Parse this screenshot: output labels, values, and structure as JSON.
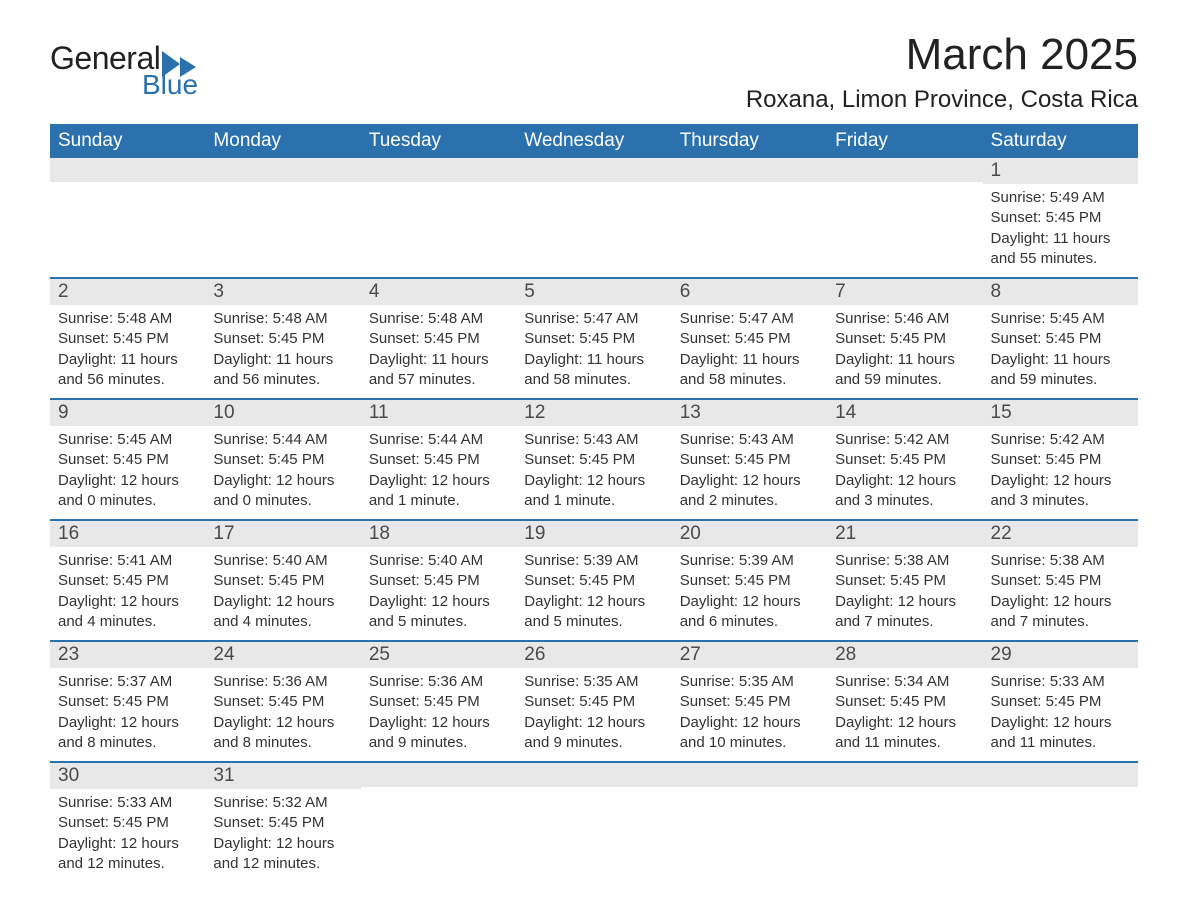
{
  "logo": {
    "text1": "General",
    "text2": "Blue",
    "brand_color": "#2a71ad"
  },
  "header": {
    "month_title": "March 2025",
    "location": "Roxana, Limon Province, Costa Rica"
  },
  "colors": {
    "header_bg": "#2a71ad",
    "header_fg": "#ffffff",
    "daynum_bg": "#e8e8e8",
    "row_divider": "#2a71ad",
    "text": "#222222"
  },
  "typography": {
    "month_title_fontsize": 44,
    "location_fontsize": 24,
    "weekday_fontsize": 19,
    "daynum_fontsize": 19,
    "body_fontsize": 15
  },
  "calendar": {
    "type": "table",
    "weekdays": [
      "Sunday",
      "Monday",
      "Tuesday",
      "Wednesday",
      "Thursday",
      "Friday",
      "Saturday"
    ],
    "weeks": [
      [
        null,
        null,
        null,
        null,
        null,
        null,
        {
          "day": "1",
          "sunrise": "Sunrise: 5:49 AM",
          "sunset": "Sunset: 5:45 PM",
          "daylight": "Daylight: 11 hours and 55 minutes."
        }
      ],
      [
        {
          "day": "2",
          "sunrise": "Sunrise: 5:48 AM",
          "sunset": "Sunset: 5:45 PM",
          "daylight": "Daylight: 11 hours and 56 minutes."
        },
        {
          "day": "3",
          "sunrise": "Sunrise: 5:48 AM",
          "sunset": "Sunset: 5:45 PM",
          "daylight": "Daylight: 11 hours and 56 minutes."
        },
        {
          "day": "4",
          "sunrise": "Sunrise: 5:48 AM",
          "sunset": "Sunset: 5:45 PM",
          "daylight": "Daylight: 11 hours and 57 minutes."
        },
        {
          "day": "5",
          "sunrise": "Sunrise: 5:47 AM",
          "sunset": "Sunset: 5:45 PM",
          "daylight": "Daylight: 11 hours and 58 minutes."
        },
        {
          "day": "6",
          "sunrise": "Sunrise: 5:47 AM",
          "sunset": "Sunset: 5:45 PM",
          "daylight": "Daylight: 11 hours and 58 minutes."
        },
        {
          "day": "7",
          "sunrise": "Sunrise: 5:46 AM",
          "sunset": "Sunset: 5:45 PM",
          "daylight": "Daylight: 11 hours and 59 minutes."
        },
        {
          "day": "8",
          "sunrise": "Sunrise: 5:45 AM",
          "sunset": "Sunset: 5:45 PM",
          "daylight": "Daylight: 11 hours and 59 minutes."
        }
      ],
      [
        {
          "day": "9",
          "sunrise": "Sunrise: 5:45 AM",
          "sunset": "Sunset: 5:45 PM",
          "daylight": "Daylight: 12 hours and 0 minutes."
        },
        {
          "day": "10",
          "sunrise": "Sunrise: 5:44 AM",
          "sunset": "Sunset: 5:45 PM",
          "daylight": "Daylight: 12 hours and 0 minutes."
        },
        {
          "day": "11",
          "sunrise": "Sunrise: 5:44 AM",
          "sunset": "Sunset: 5:45 PM",
          "daylight": "Daylight: 12 hours and 1 minute."
        },
        {
          "day": "12",
          "sunrise": "Sunrise: 5:43 AM",
          "sunset": "Sunset: 5:45 PM",
          "daylight": "Daylight: 12 hours and 1 minute."
        },
        {
          "day": "13",
          "sunrise": "Sunrise: 5:43 AM",
          "sunset": "Sunset: 5:45 PM",
          "daylight": "Daylight: 12 hours and 2 minutes."
        },
        {
          "day": "14",
          "sunrise": "Sunrise: 5:42 AM",
          "sunset": "Sunset: 5:45 PM",
          "daylight": "Daylight: 12 hours and 3 minutes."
        },
        {
          "day": "15",
          "sunrise": "Sunrise: 5:42 AM",
          "sunset": "Sunset: 5:45 PM",
          "daylight": "Daylight: 12 hours and 3 minutes."
        }
      ],
      [
        {
          "day": "16",
          "sunrise": "Sunrise: 5:41 AM",
          "sunset": "Sunset: 5:45 PM",
          "daylight": "Daylight: 12 hours and 4 minutes."
        },
        {
          "day": "17",
          "sunrise": "Sunrise: 5:40 AM",
          "sunset": "Sunset: 5:45 PM",
          "daylight": "Daylight: 12 hours and 4 minutes."
        },
        {
          "day": "18",
          "sunrise": "Sunrise: 5:40 AM",
          "sunset": "Sunset: 5:45 PM",
          "daylight": "Daylight: 12 hours and 5 minutes."
        },
        {
          "day": "19",
          "sunrise": "Sunrise: 5:39 AM",
          "sunset": "Sunset: 5:45 PM",
          "daylight": "Daylight: 12 hours and 5 minutes."
        },
        {
          "day": "20",
          "sunrise": "Sunrise: 5:39 AM",
          "sunset": "Sunset: 5:45 PM",
          "daylight": "Daylight: 12 hours and 6 minutes."
        },
        {
          "day": "21",
          "sunrise": "Sunrise: 5:38 AM",
          "sunset": "Sunset: 5:45 PM",
          "daylight": "Daylight: 12 hours and 7 minutes."
        },
        {
          "day": "22",
          "sunrise": "Sunrise: 5:38 AM",
          "sunset": "Sunset: 5:45 PM",
          "daylight": "Daylight: 12 hours and 7 minutes."
        }
      ],
      [
        {
          "day": "23",
          "sunrise": "Sunrise: 5:37 AM",
          "sunset": "Sunset: 5:45 PM",
          "daylight": "Daylight: 12 hours and 8 minutes."
        },
        {
          "day": "24",
          "sunrise": "Sunrise: 5:36 AM",
          "sunset": "Sunset: 5:45 PM",
          "daylight": "Daylight: 12 hours and 8 minutes."
        },
        {
          "day": "25",
          "sunrise": "Sunrise: 5:36 AM",
          "sunset": "Sunset: 5:45 PM",
          "daylight": "Daylight: 12 hours and 9 minutes."
        },
        {
          "day": "26",
          "sunrise": "Sunrise: 5:35 AM",
          "sunset": "Sunset: 5:45 PM",
          "daylight": "Daylight: 12 hours and 9 minutes."
        },
        {
          "day": "27",
          "sunrise": "Sunrise: 5:35 AM",
          "sunset": "Sunset: 5:45 PM",
          "daylight": "Daylight: 12 hours and 10 minutes."
        },
        {
          "day": "28",
          "sunrise": "Sunrise: 5:34 AM",
          "sunset": "Sunset: 5:45 PM",
          "daylight": "Daylight: 12 hours and 11 minutes."
        },
        {
          "day": "29",
          "sunrise": "Sunrise: 5:33 AM",
          "sunset": "Sunset: 5:45 PM",
          "daylight": "Daylight: 12 hours and 11 minutes."
        }
      ],
      [
        {
          "day": "30",
          "sunrise": "Sunrise: 5:33 AM",
          "sunset": "Sunset: 5:45 PM",
          "daylight": "Daylight: 12 hours and 12 minutes."
        },
        {
          "day": "31",
          "sunrise": "Sunrise: 5:32 AM",
          "sunset": "Sunset: 5:45 PM",
          "daylight": "Daylight: 12 hours and 12 minutes."
        },
        null,
        null,
        null,
        null,
        null
      ]
    ]
  }
}
